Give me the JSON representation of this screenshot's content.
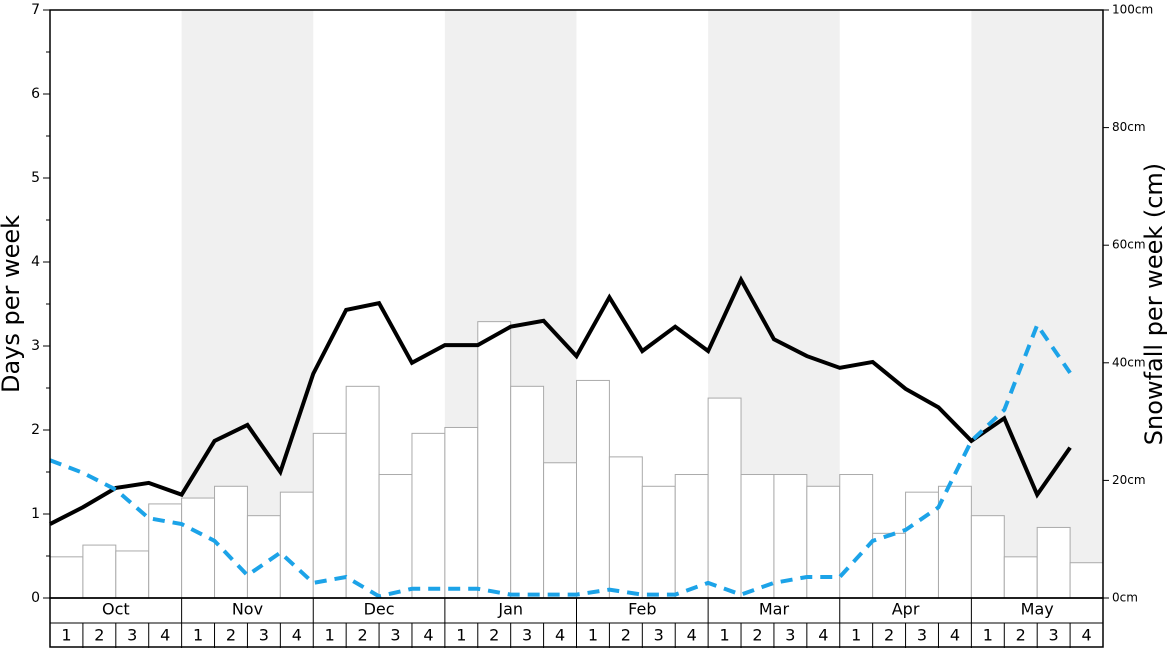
{
  "chart_data": {
    "type": "combo",
    "y_label": "Days per week",
    "y2_label": "Snowfall per week (cm)",
    "months": [
      "Oct",
      "Nov",
      "Dec",
      "Jan",
      "Feb",
      "Mar",
      "Apr",
      "May"
    ],
    "categories": [
      "1",
      "2",
      "3",
      "4",
      "1",
      "2",
      "3",
      "4",
      "1",
      "2",
      "3",
      "4",
      "1",
      "2",
      "3",
      "4",
      "1",
      "2",
      "3",
      "4",
      "1",
      "2",
      "3",
      "4",
      "1",
      "2",
      "3",
      "4",
      "1",
      "2",
      "3",
      "4"
    ],
    "ylim": [
      0,
      7
    ],
    "yticks": [
      0,
      1,
      2,
      3,
      4,
      5,
      6,
      7
    ],
    "y2lim": [
      0,
      100
    ],
    "y2ticks": [
      {
        "value": 0,
        "label": "0cm"
      },
      {
        "value": 20,
        "label": "20cm"
      },
      {
        "value": 40,
        "label": "40cm"
      },
      {
        "value": 60,
        "label": "60cm"
      },
      {
        "value": 80,
        "label": "80cm"
      },
      {
        "value": 100,
        "label": "100cm"
      }
    ],
    "series": [
      {
        "type": "bar",
        "axis": "y2",
        "color": "#ffffff",
        "values": [
          7,
          9,
          8,
          16,
          17,
          19,
          14,
          18,
          28,
          36,
          21,
          28,
          29,
          47,
          36,
          23,
          37,
          24,
          19,
          21,
          34,
          21,
          21,
          19,
          21,
          11,
          18,
          19,
          14,
          7,
          12,
          6
        ]
      },
      {
        "type": "line",
        "axis": "y",
        "color": "#000000",
        "dashed": false,
        "values": [
          0.88,
          1.08,
          1.31,
          1.37,
          1.23,
          1.87,
          2.06,
          1.5,
          2.67,
          3.43,
          3.51,
          2.8,
          3.01,
          3.01,
          3.23,
          3.3,
          2.88,
          3.58,
          2.94,
          3.23,
          2.94,
          3.79,
          3.08,
          2.88,
          2.74,
          2.81,
          2.49,
          2.27,
          1.87,
          2.14,
          1.23,
          1.79
        ]
      },
      {
        "type": "line",
        "axis": "y",
        "color": "#1ca3e8",
        "dashed": true,
        "values": [
          1.64,
          1.49,
          1.29,
          0.95,
          0.88,
          0.68,
          0.27,
          0.54,
          0.18,
          0.25,
          0.02,
          0.11,
          0.11,
          0.11,
          0.04,
          0.04,
          0.04,
          0.1,
          0.04,
          0.04,
          0.18,
          0.04,
          0.18,
          0.25,
          0.25,
          0.68,
          0.81,
          1.08,
          1.87,
          2.24,
          3.25,
          2.68
        ]
      }
    ]
  }
}
